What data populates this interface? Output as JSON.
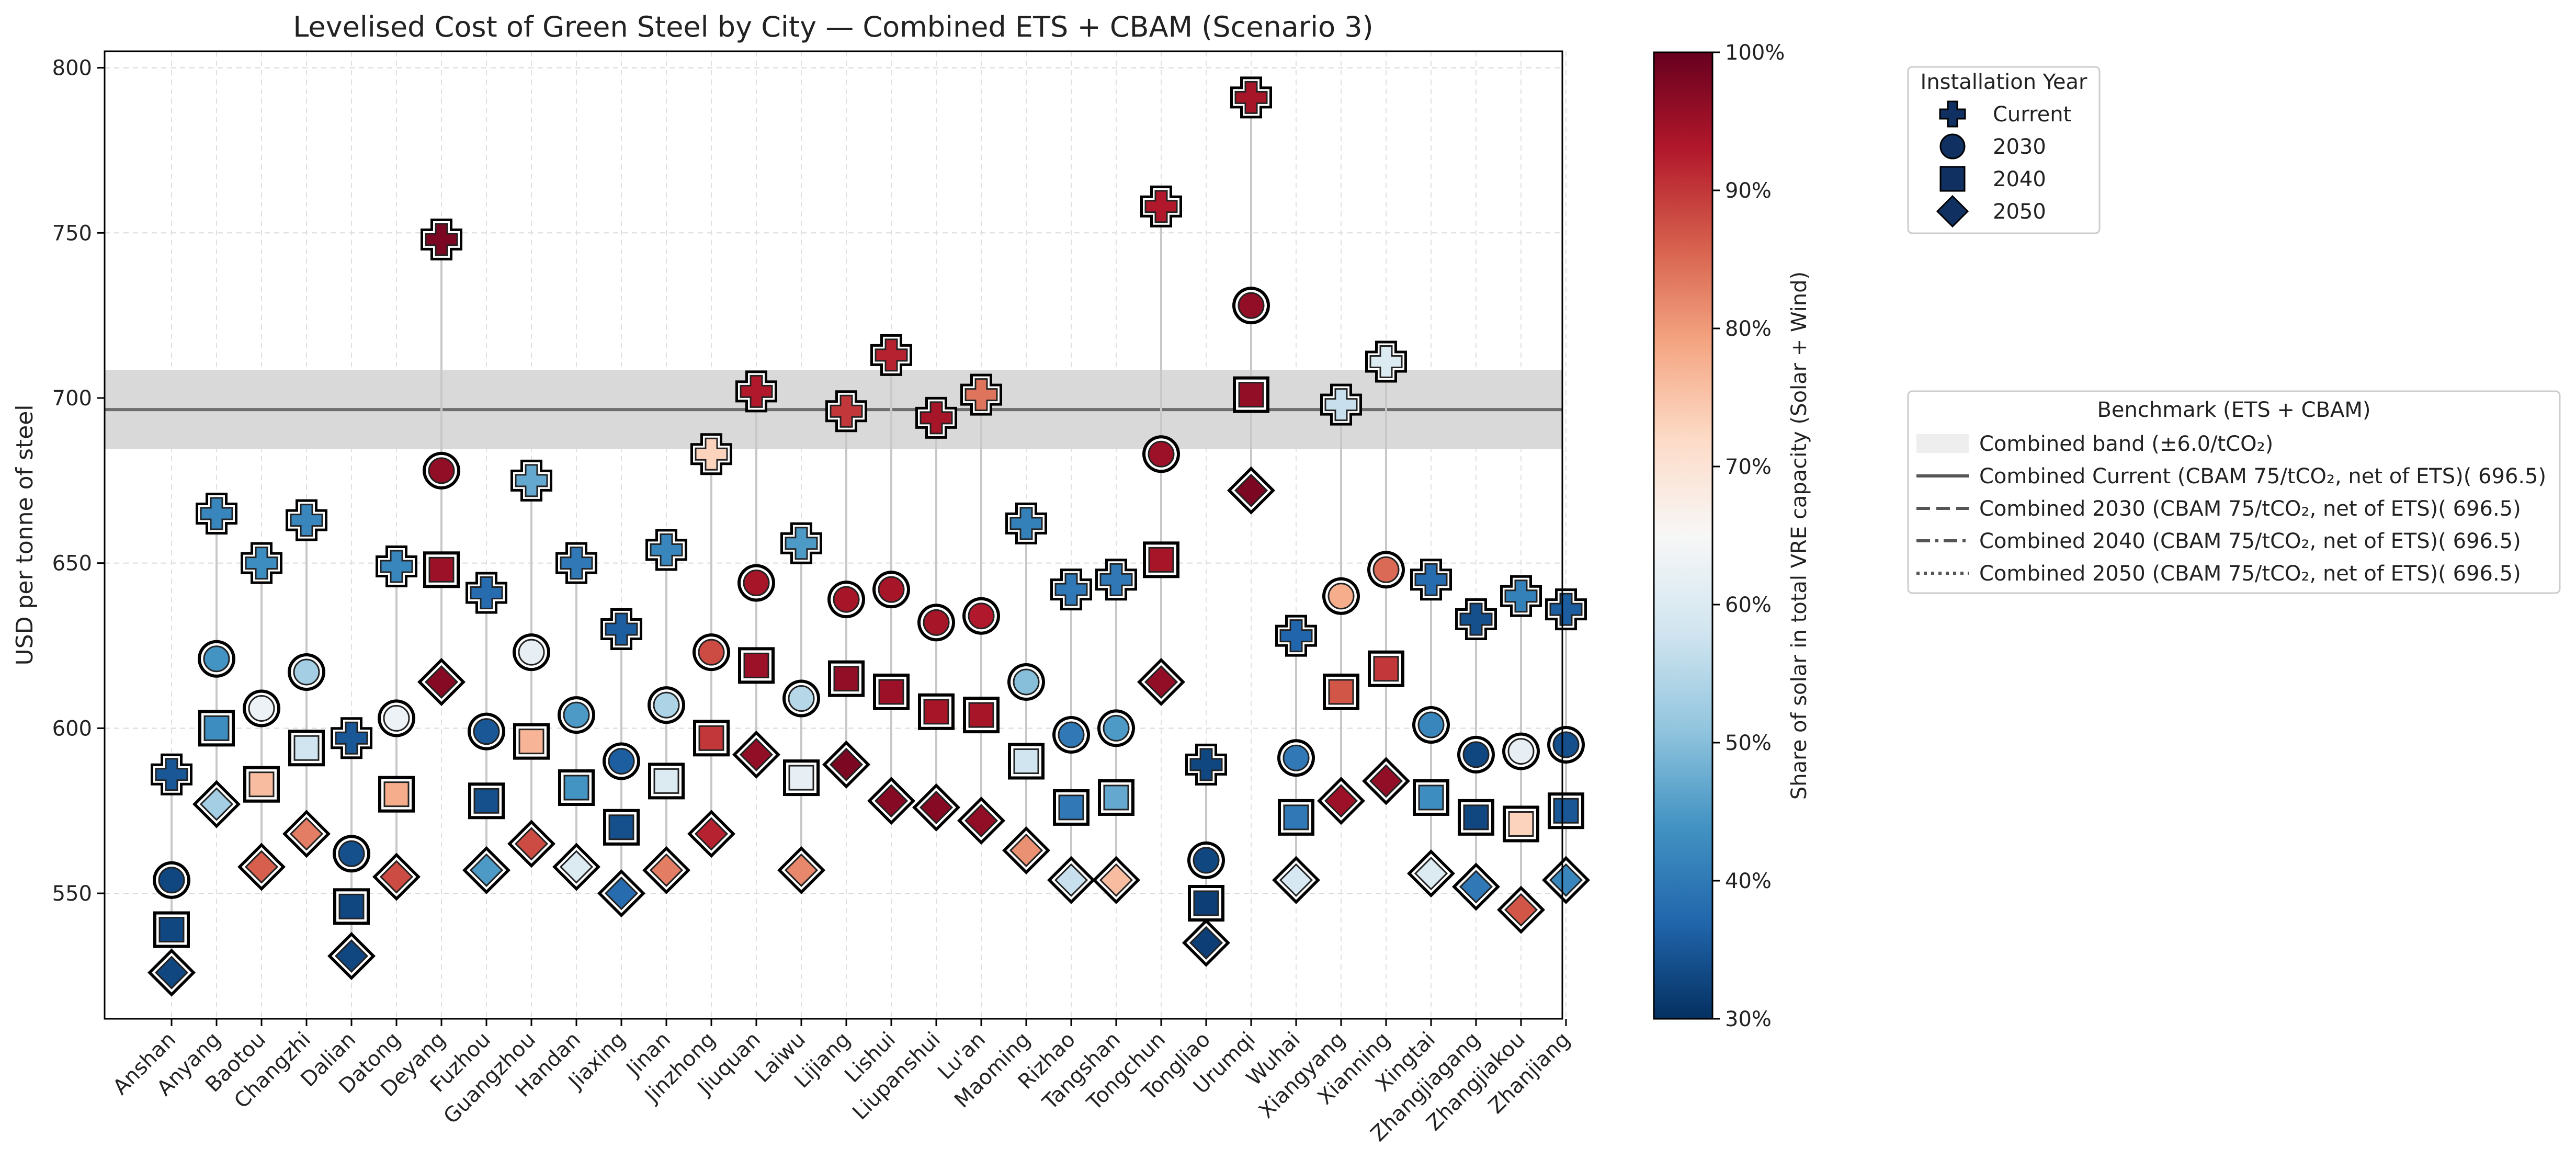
{
  "chart_data": {
    "type": "scatter",
    "title": "Levelised Cost of Green Steel by City — Combined ETS + CBAM (Scenario 3)",
    "ylabel": "USD per tonne of steel",
    "xlabel": "",
    "ylim": [
      512,
      805
    ],
    "yticks": [
      550,
      600,
      650,
      700,
      750,
      800
    ],
    "grid": true,
    "categories": [
      "Anshan",
      "Anyang",
      "Baotou",
      "Changzhi",
      "Dalian",
      "Datong",
      "Deyang",
      "Fuzhou",
      "Guangzhou",
      "Handan",
      "Jiaxing",
      "Jinan",
      "Jinzhong",
      "Jiuquan",
      "Laiwu",
      "Lijiang",
      "Lishui",
      "Liupanshui",
      "Lu'an",
      "Maoming",
      "Rizhao",
      "Tangshan",
      "Tongchun",
      "Tongliao",
      "Urumqi",
      "Wuhai",
      "Xiangyang",
      "Xianning",
      "Xingtai",
      "Zhangjiagang",
      "Zhangjiakou",
      "Zhanjiang"
    ],
    "series": [
      {
        "name": "Current",
        "marker": "plus",
        "values": [
          586,
          665,
          650,
          663,
          597,
          649,
          748,
          641,
          675,
          650,
          630,
          654,
          683,
          702,
          656,
          696,
          713,
          694,
          701,
          662,
          642,
          645,
          758,
          589,
          791,
          628,
          698,
          711,
          645,
          633,
          640,
          636
        ],
        "solar_share_pct": [
          35,
          42,
          43,
          42,
          35,
          42,
          98,
          38,
          47,
          40,
          36,
          42,
          73,
          93,
          45,
          90,
          92,
          94,
          84,
          41,
          40,
          40,
          93,
          33,
          94,
          37,
          57,
          60,
          38,
          34,
          41,
          36
        ]
      },
      {
        "name": "2030",
        "marker": "circle",
        "values": [
          554,
          621,
          606,
          617,
          562,
          603,
          678,
          599,
          623,
          604,
          590,
          607,
          623,
          644,
          609,
          639,
          642,
          632,
          634,
          614,
          598,
          600,
          683,
          560,
          728,
          591,
          640,
          648,
          601,
          592,
          593,
          595
        ],
        "solar_share_pct": [
          33,
          44,
          63,
          53,
          34,
          63,
          96,
          35,
          62,
          45,
          36,
          54,
          88,
          94,
          55,
          94,
          94,
          94,
          93,
          50,
          40,
          45,
          95,
          33,
          96,
          40,
          78,
          85,
          42,
          33,
          62,
          34
        ]
      },
      {
        "name": "2040",
        "marker": "square",
        "values": [
          539,
          600,
          583,
          594,
          546,
          580,
          648,
          578,
          596,
          582,
          570,
          584,
          597,
          619,
          585,
          615,
          611,
          605,
          604,
          590,
          576,
          579,
          651,
          547,
          701,
          573,
          611,
          618,
          579,
          573,
          571,
          575
        ],
        "solar_share_pct": [
          33,
          43,
          76,
          58,
          33,
          78,
          95,
          34,
          77,
          44,
          34,
          60,
          90,
          95,
          62,
          96,
          95,
          94,
          94,
          58,
          40,
          47,
          94,
          32,
          96,
          40,
          87,
          90,
          43,
          33,
          73,
          35
        ]
      },
      {
        "name": "2050",
        "marker": "diamond",
        "values": [
          526,
          577,
          558,
          568,
          531,
          555,
          614,
          557,
          565,
          558,
          550,
          557,
          568,
          592,
          557,
          589,
          578,
          576,
          572,
          563,
          554,
          554,
          614,
          535,
          672,
          554,
          578,
          584,
          556,
          552,
          545,
          554
        ],
        "solar_share_pct": [
          33,
          53,
          86,
          83,
          33,
          88,
          97,
          45,
          88,
          60,
          38,
          83,
          92,
          96,
          82,
          98,
          97,
          97,
          96,
          81,
          57,
          76,
          96,
          32,
          98,
          59,
          95,
          96,
          60,
          40,
          87,
          42
        ]
      }
    ],
    "colorbar": {
      "label": "Share of solar in total VRE capacity (Solar + Wind)",
      "min": 30,
      "max": 100,
      "ticks": [
        "30%",
        "40%",
        "50%",
        "60%",
        "70%",
        "80%",
        "90%",
        "100%"
      ],
      "colors": [
        "#053061",
        "#2166ac",
        "#4393c3",
        "#92c5de",
        "#d1e5f0",
        "#f7f7f7",
        "#fddbc7",
        "#f4a582",
        "#d6604d",
        "#b2182b",
        "#67001f"
      ]
    },
    "benchmark": {
      "value": 696.5,
      "band_low": 684.5,
      "band_high": 708.5
    },
    "legend_year": {
      "title": "Installation Year",
      "entries": [
        "Current",
        "2030",
        "2040",
        "2050"
      ],
      "position": "upper-right, outside"
    },
    "legend_benchmark": {
      "title": "Benchmark (ETS + CBAM)",
      "entries": [
        "Combined band (±6.0/tCO₂)",
        "Combined Current (CBAM 75/tCO₂, net of ETS)( 696.5)",
        "Combined 2030 (CBAM 75/tCO₂, net of ETS)( 696.5)",
        "Combined 2040 (CBAM 75/tCO₂, net of ETS)( 696.5)",
        "Combined 2050 (CBAM 75/tCO₂, net of ETS)( 696.5)"
      ],
      "position": "right, outside"
    }
  }
}
